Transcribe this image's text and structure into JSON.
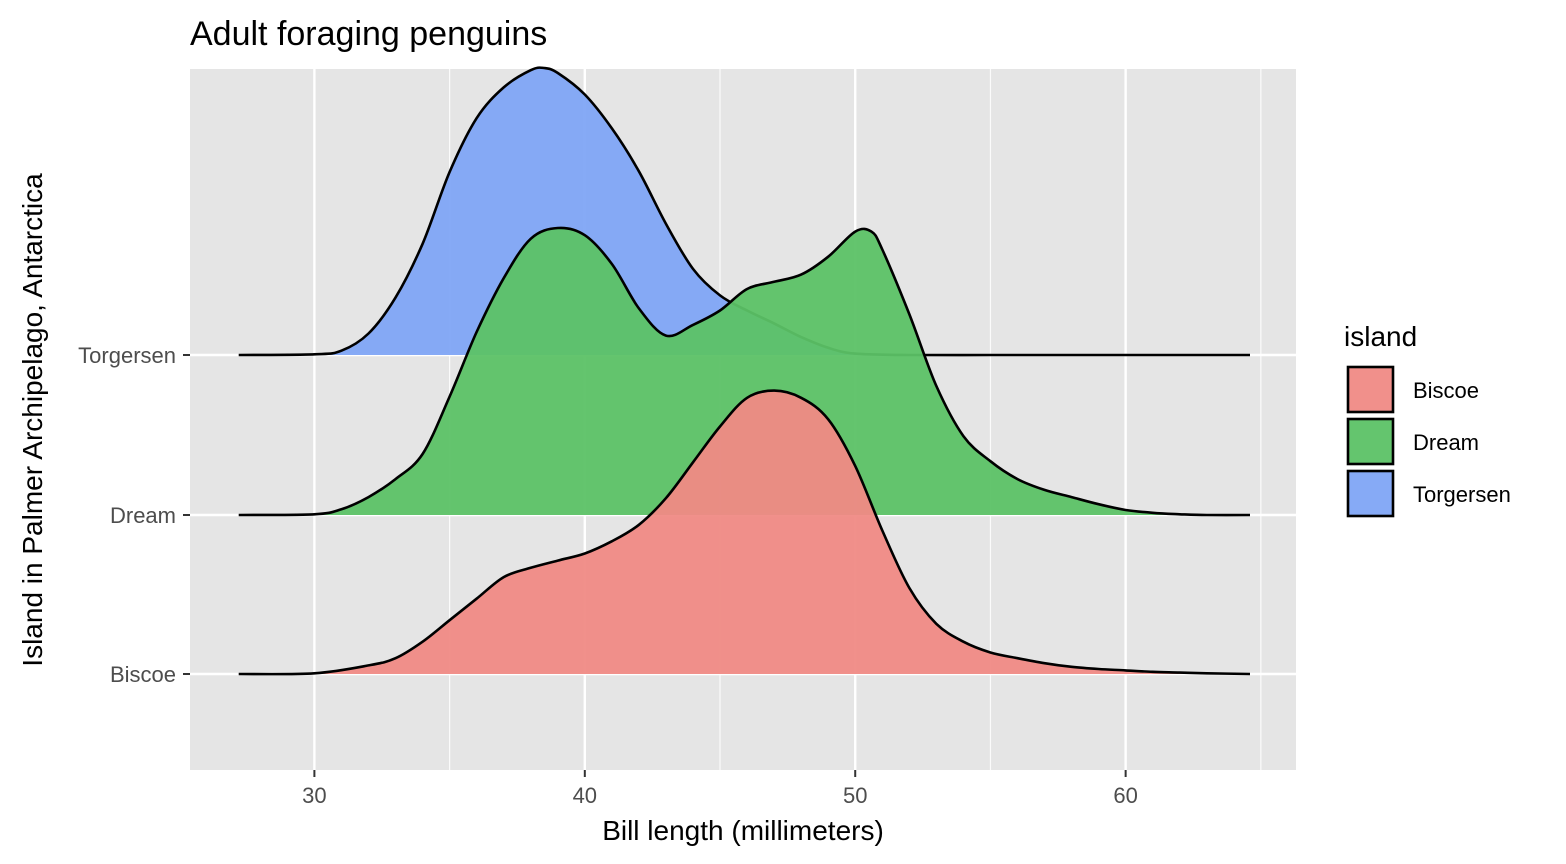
{
  "chart_data": {
    "type": "ridgeline-density",
    "title": "Adult foraging penguins",
    "xlabel": "Bill length (millimeters)",
    "ylabel": "Island in Palmer Archipelago, Antarctica",
    "xlim": [
      25.4,
      66.3
    ],
    "x_ticks": [
      30,
      40,
      50,
      60
    ],
    "x_tick_labels": [
      "30",
      "40",
      "50",
      "60"
    ],
    "categories": [
      "Biscoe",
      "Dream",
      "Torgersen"
    ],
    "grid": true,
    "legend": {
      "title": "island",
      "placement": "right",
      "entries": [
        "Biscoe",
        "Dream",
        "Torgersen"
      ]
    },
    "colors": {
      "Biscoe": "#F08A85",
      "Dream": "#5CC266",
      "Torgersen": "#80A5F6",
      "panel": "#E5E5E5",
      "grid": "#FFFFFF",
      "outline": "#000000"
    },
    "series": [
      {
        "name": "Biscoe",
        "x": [
          27.2,
          30,
          32,
          33,
          34,
          35,
          36,
          37,
          38,
          39,
          40,
          41,
          42,
          43,
          44,
          45,
          46,
          47,
          48,
          49,
          50,
          51,
          52,
          53,
          54,
          55,
          56,
          57,
          58,
          59,
          60,
          61,
          62,
          63,
          64.6
        ],
        "density": [
          0.0,
          0.001,
          0.012,
          0.022,
          0.045,
          0.075,
          0.105,
          0.135,
          0.148,
          0.158,
          0.168,
          0.185,
          0.208,
          0.245,
          0.295,
          0.345,
          0.385,
          0.395,
          0.385,
          0.355,
          0.29,
          0.2,
          0.12,
          0.07,
          0.045,
          0.03,
          0.022,
          0.015,
          0.01,
          0.007,
          0.005,
          0.003,
          0.002,
          0.001,
          0.0
        ]
      },
      {
        "name": "Dream",
        "x": [
          27.2,
          30,
          31,
          32,
          33,
          34,
          35,
          36,
          37,
          38,
          39,
          40,
          41,
          42,
          43,
          44,
          45,
          46,
          47,
          48,
          49,
          50,
          50.6,
          51,
          52,
          53,
          54,
          55,
          56,
          57,
          58,
          59,
          60,
          61,
          62,
          63,
          64.6
        ],
        "density": [
          0.0,
          0.001,
          0.008,
          0.025,
          0.05,
          0.085,
          0.165,
          0.255,
          0.33,
          0.385,
          0.4,
          0.39,
          0.35,
          0.288,
          0.25,
          0.265,
          0.285,
          0.315,
          0.325,
          0.335,
          0.36,
          0.395,
          0.395,
          0.37,
          0.28,
          0.18,
          0.11,
          0.075,
          0.05,
          0.035,
          0.025,
          0.015,
          0.007,
          0.003,
          0.001,
          0.0,
          0.0
        ]
      },
      {
        "name": "Torgersen",
        "x": [
          27.2,
          30,
          31,
          32,
          33,
          34,
          35,
          36,
          37,
          38,
          38.5,
          39,
          40,
          41,
          42,
          43,
          44,
          45,
          46,
          47,
          48,
          49,
          50,
          52,
          55,
          58,
          60,
          64.6
        ],
        "density": [
          0.0,
          0.001,
          0.006,
          0.03,
          0.08,
          0.155,
          0.255,
          0.33,
          0.373,
          0.397,
          0.4,
          0.393,
          0.363,
          0.316,
          0.256,
          0.183,
          0.12,
          0.083,
          0.062,
          0.044,
          0.025,
          0.01,
          0.002,
          0.0,
          0.0,
          0.0,
          0.0,
          0.0
        ]
      }
    ]
  }
}
